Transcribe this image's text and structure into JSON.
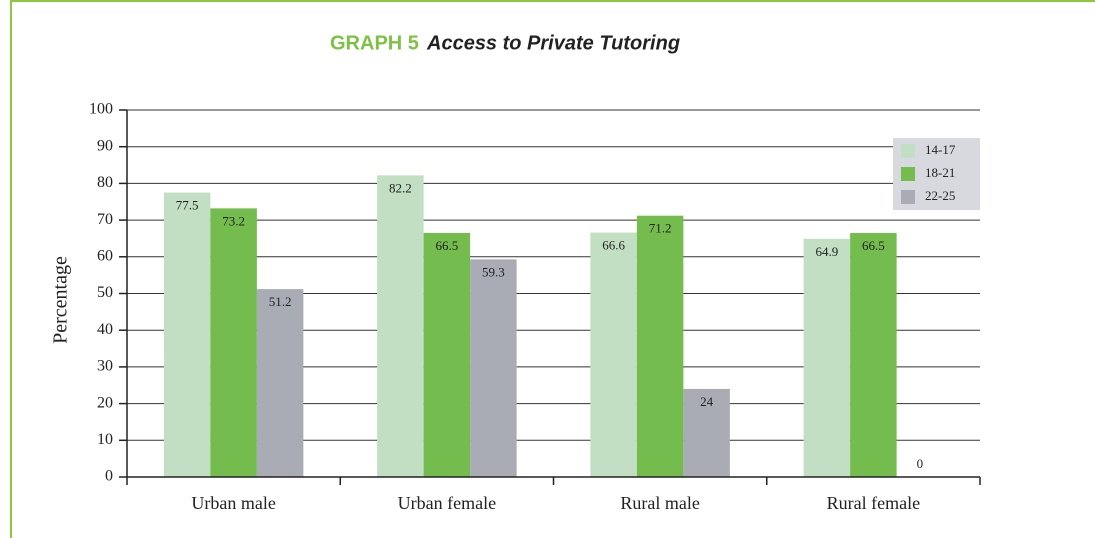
{
  "chart_data": {
    "type": "bar",
    "title_label": "GRAPH 5",
    "title": "Access to Private Tutoring",
    "y_label": "Percentage",
    "categories": [
      "Urban male",
      "Urban female",
      "Rural male",
      "Rural female"
    ],
    "series": [
      {
        "name": "14-17",
        "color": "#c3dfc3",
        "values": [
          77.5,
          82.2,
          66.6,
          64.9
        ]
      },
      {
        "name": "18-21",
        "color": "#74bc4e",
        "values": [
          73.2,
          66.5,
          71.2,
          66.5
        ]
      },
      {
        "name": "22-25",
        "color": "#a9acb4",
        "values": [
          51.2,
          59.3,
          24,
          0
        ]
      }
    ],
    "ylim": [
      0,
      100
    ],
    "yticks": [
      0,
      10,
      20,
      30,
      40,
      50,
      60,
      70,
      80,
      90,
      100
    ],
    "grid": true,
    "legend": "top-right"
  }
}
